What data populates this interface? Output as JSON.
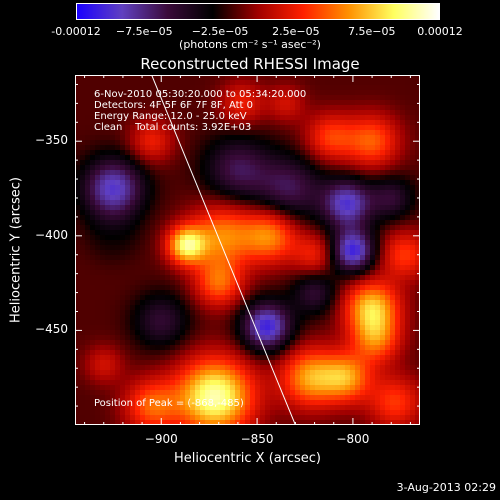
{
  "colorbar": {
    "ticks": [
      "-0.00012",
      "−7.5e−05",
      "−2.5e−05",
      "2.5e−05",
      "7.5e−05",
      "0.00012"
    ],
    "unit_label": "(photons cm⁻² s⁻¹ asec⁻²)",
    "min": -0.00012,
    "max": 0.00012
  },
  "annotations": {
    "time": "6-Nov-2010 05:30:20.000 to 05:34:20.000",
    "detectors": "Detectors: 4F 5F 6F 7F 8F, Att 0",
    "energy": "Energy Range: 12.0 - 25.0 keV",
    "clean": "Clean    Total counts: 3.92E+03",
    "peak": "Position of Peak = (-868,-485)"
  },
  "footer": {
    "date": "3-Aug-2013 02:29"
  },
  "chart_data": {
    "type": "heatmap",
    "title": "Reconstructed RHESSI Image",
    "xlabel": "Heliocentric X (arcsec)",
    "ylabel": "Heliocentric Y (arcsec)",
    "xlim": [
      -945,
      -765
    ],
    "ylim": [
      -500,
      -315
    ],
    "xticks": [
      -900,
      -850,
      -800
    ],
    "yticks": [
      -350,
      -400,
      -450
    ],
    "xtick_labels": [
      "−900",
      "−850",
      "−800"
    ],
    "ytick_labels": [
      "−350",
      "−400",
      "−450"
    ],
    "colormap": [
      "#1a00ff",
      "#6040c0",
      "#3a0a3a",
      "#000000",
      "#a00000",
      "#ff2000",
      "#ff9000",
      "#ffff60",
      "#ffffff"
    ],
    "limb_line": {
      "x": [
        -905,
        -830
      ],
      "y": [
        -315,
        -500
      ]
    },
    "sources": [
      {
        "x": -872,
        "y": -485,
        "value": 0.00012,
        "s": 14
      },
      {
        "x": -905,
        "y": -490,
        "value": 6e-05,
        "s": 10
      },
      {
        "x": -822,
        "y": -475,
        "value": 8e-05,
        "s": 11
      },
      {
        "x": -803,
        "y": -475,
        "value": 7e-05,
        "s": 9
      },
      {
        "x": -778,
        "y": -488,
        "value": 5e-05,
        "s": 10
      },
      {
        "x": -790,
        "y": -438,
        "value": 9e-05,
        "s": 10
      },
      {
        "x": -788,
        "y": -455,
        "value": 6e-05,
        "s": 9
      },
      {
        "x": -887,
        "y": -405,
        "value": 0.0001,
        "s": 7
      },
      {
        "x": -868,
        "y": -400,
        "value": 7e-05,
        "s": 12
      },
      {
        "x": -870,
        "y": -425,
        "value": 6e-05,
        "s": 9
      },
      {
        "x": -843,
        "y": -400,
        "value": 7e-05,
        "s": 10
      },
      {
        "x": -820,
        "y": -410,
        "value": 4e-05,
        "s": 8
      },
      {
        "x": -812,
        "y": -348,
        "value": 5e-05,
        "s": 9
      },
      {
        "x": -790,
        "y": -350,
        "value": 6e-05,
        "s": 10
      },
      {
        "x": -773,
        "y": -410,
        "value": 5e-05,
        "s": 9
      },
      {
        "x": -905,
        "y": -350,
        "value": 4e-05,
        "s": 8
      },
      {
        "x": -858,
        "y": -330,
        "value": 4e-05,
        "s": 8
      },
      {
        "x": -925,
        "y": -400,
        "value": 3e-05,
        "s": 7
      },
      {
        "x": -930,
        "y": -468,
        "value": 3e-05,
        "s": 7
      },
      {
        "x": -835,
        "y": -330,
        "value": 3e-05,
        "s": 7
      },
      {
        "x": -925,
        "y": -375,
        "value": -8e-05,
        "s": 11
      },
      {
        "x": -925,
        "y": -400,
        "value": -4e-05,
        "s": 8
      },
      {
        "x": -860,
        "y": -365,
        "value": -5e-05,
        "s": 12
      },
      {
        "x": -833,
        "y": -375,
        "value": -5e-05,
        "s": 12
      },
      {
        "x": -803,
        "y": -383,
        "value": -8e-05,
        "s": 9
      },
      {
        "x": -800,
        "y": -408,
        "value": -9e-05,
        "s": 8
      },
      {
        "x": -845,
        "y": -448,
        "value": -9e-05,
        "s": 9
      },
      {
        "x": -900,
        "y": -445,
        "value": -4e-05,
        "s": 10
      },
      {
        "x": -780,
        "y": -380,
        "value": -4e-05,
        "s": 8
      },
      {
        "x": -820,
        "y": -430,
        "value": -4e-05,
        "s": 8
      }
    ]
  }
}
